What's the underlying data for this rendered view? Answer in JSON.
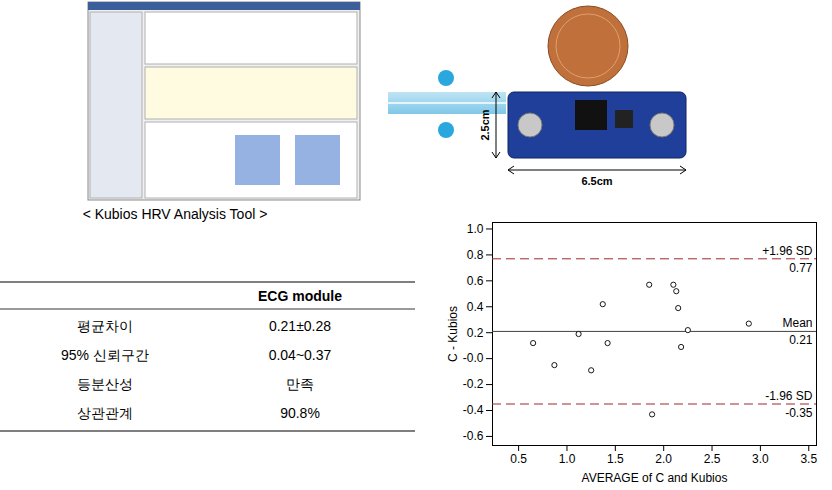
{
  "chart_data": {
    "type": "scatter",
    "x_label": "AVERAGE of C and Kubios",
    "y_label": "C - Kubios",
    "x": [
      0.65,
      0.87,
      1.12,
      1.25,
      1.37,
      1.42,
      1.85,
      1.88,
      2.1,
      2.13,
      2.15,
      2.18,
      2.25,
      2.88
    ],
    "values": [
      0.12,
      -0.05,
      0.19,
      -0.09,
      0.42,
      0.12,
      0.57,
      -0.43,
      0.57,
      0.52,
      0.39,
      0.09,
      0.22,
      0.27
    ],
    "color": "#000000",
    "marker": "circle_open",
    "xlim": [
      0.23,
      3.58
    ],
    "xticks": [
      0.5,
      {
        "value": 1,
        "label": "1.0"
      },
      1.5,
      {
        "value": 2,
        "label": "2.0"
      },
      2.5,
      {
        "value": 3,
        "label": "3.0"
      },
      3.5
    ],
    "ylim": [
      -0.67,
      1.05
    ],
    "yticks": [
      -0.6,
      -0.4,
      -0.2,
      {
        "value": 0,
        "label": "-0.0"
      },
      0.2,
      0.4,
      0.6,
      0.8,
      {
        "value": 1,
        "label": "1.0"
      }
    ],
    "grid": false,
    "reference_lines": [
      {
        "value": 0.77,
        "label": "+1.96 SD",
        "value_label": "0.77",
        "color": "#a0282a",
        "line_style": "dashed"
      },
      {
        "value": 0.21,
        "label": "Mean",
        "value_label": "0.21",
        "color": "#404040",
        "line_style": "solid"
      },
      {
        "value": -0.35,
        "label": "-1.96 SD",
        "value_label": "-0.35",
        "color": "#a0282a",
        "line_style": "dashed"
      }
    ]
  },
  "screenshot_caption": "< Kubios HRV Analysis Tool >",
  "device": {
    "height_label": "2.5cm",
    "width_label": "6.5cm"
  },
  "table": {
    "header": [
      "",
      "ECG module"
    ],
    "rows": [
      [
        "평균차이",
        "0.21±0.28"
      ],
      [
        "95% 신뢰구간",
        "0.04~0.37"
      ],
      [
        "등분산성",
        "만족"
      ],
      [
        "상관관계",
        "90.8%"
      ]
    ]
  }
}
